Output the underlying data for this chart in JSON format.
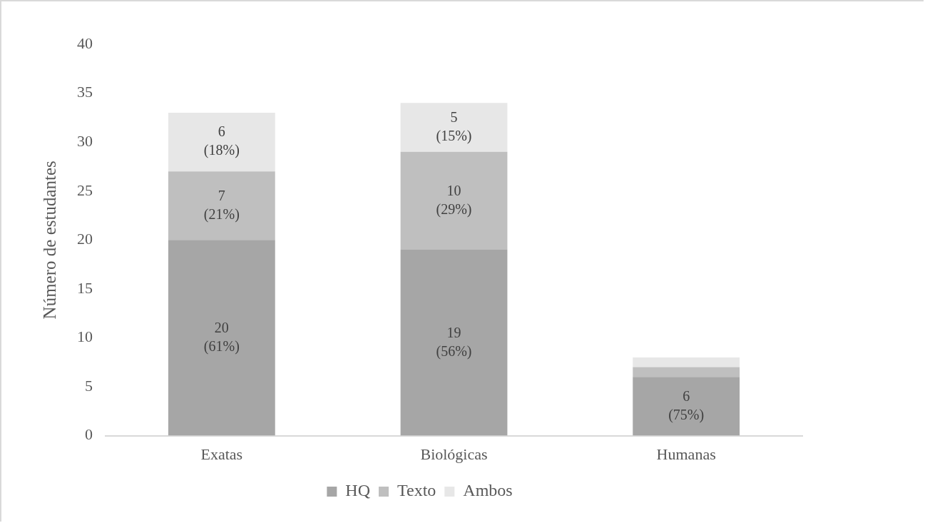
{
  "chart_data": {
    "type": "bar",
    "stacked": true,
    "ylabel": "Número de estudantes",
    "categories": [
      "Exatas",
      "Biológicas",
      "Humanas"
    ],
    "series": [
      {
        "name": "HQ",
        "color": "#a6a6a6",
        "values": [
          20,
          19,
          6
        ],
        "value_labels": [
          "20\n(61%)",
          "19\n(56%)",
          "6\n(75%)"
        ]
      },
      {
        "name": "Texto",
        "color": "#bfbfbf",
        "values": [
          7,
          10,
          1
        ],
        "value_labels": [
          "7\n(21%)",
          "10\n(29%)",
          null
        ]
      },
      {
        "name": "Ambos",
        "color": "#e7e7e7",
        "values": [
          6,
          5,
          1
        ],
        "value_labels": [
          "6\n(18%)",
          "5\n(15%)",
          null
        ]
      }
    ],
    "ylim": [
      0,
      40
    ],
    "yticks": [
      0,
      5,
      10,
      15,
      20,
      25,
      30,
      35,
      40
    ],
    "grid": false,
    "legend": "bottom"
  }
}
